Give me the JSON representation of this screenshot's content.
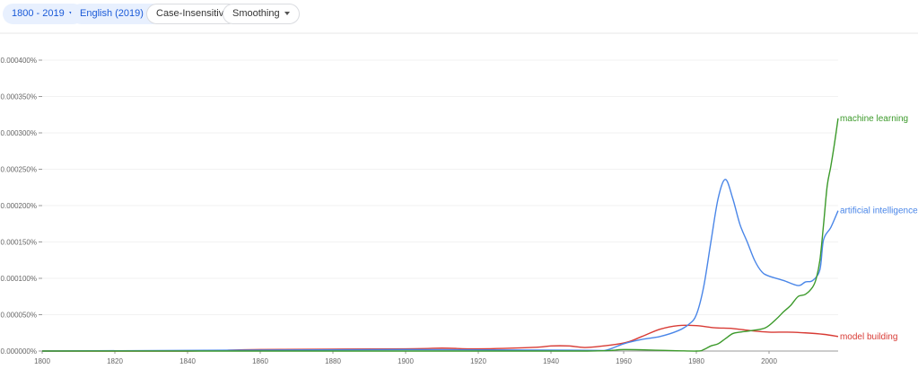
{
  "toolbar": {
    "year_range": "1800 - 2019",
    "corpus": "English (2019)",
    "case": "Case-Insensitive",
    "smoothing": "Smoothing"
  },
  "chart_data": {
    "type": "line",
    "xlim": [
      1800,
      2019
    ],
    "ylim": [
      0,
      0.0004
    ],
    "grid": true,
    "legend": "labels at line ends (right)",
    "x_ticks": [
      "1800",
      "1820",
      "1840",
      "1860",
      "1880",
      "1900",
      "1920",
      "1940",
      "1960",
      "1980",
      "2000"
    ],
    "y_ticks": [
      "0.000000%",
      "0.000050%",
      "0.000100%",
      "0.000150%",
      "0.000200%",
      "0.000250%",
      "0.000300%",
      "0.000350%",
      "0.000400%"
    ],
    "y_unit": "%",
    "series": [
      {
        "name": "machine learning",
        "color": "#3c9a2b",
        "x": [
          1800,
          1900,
          1950,
          1960,
          1970,
          1980,
          1982,
          1984,
          1986,
          1988,
          1990,
          1992,
          1995,
          1999,
          2002,
          2004,
          2006,
          2008,
          2010,
          2012,
          2013,
          2014,
          2015,
          2016,
          2017,
          2018,
          2019
        ],
        "y": [
          0,
          0,
          0,
          2e-06,
          1e-06,
          0,
          2e-06,
          7e-06,
          1e-05,
          1.7e-05,
          2.4e-05,
          2.6e-05,
          2.8e-05,
          3.2e-05,
          4.4e-05,
          5.4e-05,
          6.3e-05,
          7.5e-05,
          7.8e-05,
          8.8e-05,
          0.0001,
          0.000125,
          0.000174,
          0.000227,
          0.000254,
          0.000285,
          0.00032
        ]
      },
      {
        "name": "artificial intelligence",
        "color": "#4a86e8",
        "x": [
          1800,
          1900,
          1950,
          1955,
          1960,
          1965,
          1970,
          1975,
          1978,
          1980,
          1982,
          1984,
          1986,
          1988,
          1990,
          1992,
          1994,
          1996,
          1998,
          2000,
          2004,
          2008,
          2010,
          2012,
          2014,
          2015,
          2017,
          2019
        ],
        "y": [
          0,
          2e-06,
          1e-06,
          1e-06,
          1e-05,
          1.6e-05,
          2e-05,
          2.8e-05,
          3.7e-05,
          5e-05,
          8.8e-05,
          0.00015,
          0.00021,
          0.000236,
          0.00021,
          0.000174,
          0.00015,
          0.000125,
          0.000109,
          0.000103,
          9.7e-05,
          9e-05,
          9.5e-05,
          9.7e-05,
          0.000112,
          0.000153,
          0.00017,
          0.000193
        ]
      },
      {
        "name": "model building",
        "color": "#d83b35",
        "x": [
          1800,
          1840,
          1860,
          1900,
          1910,
          1920,
          1935,
          1940,
          1945,
          1950,
          1960,
          1965,
          1970,
          1975,
          1980,
          1985,
          1990,
          1995,
          2000,
          2005,
          2010,
          2015,
          2019
        ],
        "y": [
          0,
          0,
          2e-06,
          3e-06,
          4e-06,
          3e-06,
          5e-06,
          7e-06,
          7e-06,
          5e-06,
          1.1e-05,
          2e-05,
          3e-05,
          3.5e-05,
          3.5e-05,
          3.2e-05,
          3.1e-05,
          2.8e-05,
          2.6e-05,
          2.6e-05,
          2.5e-05,
          2.3e-05,
          2e-05
        ]
      }
    ]
  }
}
